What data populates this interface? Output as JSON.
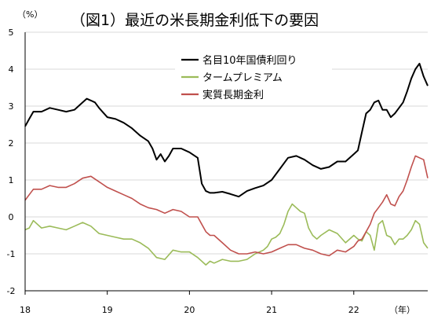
{
  "title": "（図1）最近の米長期金利低下の要因",
  "y_unit": "（%）",
  "x_unit": "（年）",
  "colors": {
    "black": "#000000",
    "green": "#9bbb59",
    "red": "#c0504d"
  },
  "chart_data": {
    "type": "line",
    "title": "（図1）最近の米長期金利低下の要因",
    "ylabel": "（%）",
    "xlabel": "（年）",
    "ylim": [
      -2,
      5
    ],
    "xlim": [
      2018.0,
      2022.9
    ],
    "grid": true,
    "legend_position": "top-center",
    "yticks": [
      "5",
      "4",
      "3",
      "2",
      "1",
      "0",
      "-1",
      "-2"
    ],
    "ytick_values": [
      5,
      4,
      3,
      2,
      1,
      0,
      -1,
      -2
    ],
    "xticks": [
      "18",
      "19",
      "20",
      "21",
      "22"
    ],
    "xtick_values": [
      2018,
      2019,
      2020,
      2021,
      2022
    ],
    "series": [
      {
        "name": "名目10年国債利回り",
        "color": "#000000",
        "x": [
          2018.0,
          2018.05,
          2018.1,
          2018.2,
          2018.3,
          2018.4,
          2018.5,
          2018.6,
          2018.7,
          2018.75,
          2018.8,
          2018.85,
          2018.9,
          2019.0,
          2019.1,
          2019.2,
          2019.3,
          2019.4,
          2019.5,
          2019.55,
          2019.6,
          2019.65,
          2019.7,
          2019.75,
          2019.8,
          2019.9,
          2020.0,
          2020.1,
          2020.15,
          2020.2,
          2020.25,
          2020.3,
          2020.4,
          2020.5,
          2020.6,
          2020.7,
          2020.8,
          2020.9,
          2021.0,
          2021.1,
          2021.2,
          2021.3,
          2021.4,
          2021.5,
          2021.6,
          2021.7,
          2021.8,
          2021.9,
          2022.0,
          2022.05,
          2022.1,
          2022.15,
          2022.2,
          2022.25,
          2022.3,
          2022.35,
          2022.4,
          2022.45,
          2022.5,
          2022.55,
          2022.6,
          2022.65,
          2022.7,
          2022.75,
          2022.8,
          2022.85,
          2022.9
        ],
        "values": [
          2.45,
          2.65,
          2.85,
          2.85,
          2.95,
          2.9,
          2.85,
          2.9,
          3.1,
          3.2,
          3.15,
          3.1,
          2.95,
          2.7,
          2.65,
          2.55,
          2.4,
          2.2,
          2.05,
          1.85,
          1.55,
          1.7,
          1.5,
          1.65,
          1.85,
          1.85,
          1.75,
          1.6,
          0.9,
          0.7,
          0.65,
          0.65,
          0.68,
          0.62,
          0.55,
          0.7,
          0.78,
          0.85,
          1.0,
          1.3,
          1.6,
          1.65,
          1.55,
          1.4,
          1.3,
          1.35,
          1.5,
          1.5,
          1.7,
          1.8,
          2.3,
          2.8,
          2.9,
          3.1,
          3.15,
          2.9,
          2.9,
          2.7,
          2.8,
          2.95,
          3.1,
          3.4,
          3.75,
          4.0,
          4.15,
          3.8,
          3.55
        ]
      },
      {
        "name": "タームプレミアム",
        "color": "#9bbb59",
        "x": [
          2018.0,
          2018.05,
          2018.1,
          2018.2,
          2018.3,
          2018.4,
          2018.5,
          2018.6,
          2018.7,
          2018.8,
          2018.9,
          2019.0,
          2019.1,
          2019.2,
          2019.3,
          2019.4,
          2019.5,
          2019.6,
          2019.7,
          2019.8,
          2019.9,
          2020.0,
          2020.1,
          2020.2,
          2020.25,
          2020.3,
          2020.4,
          2020.5,
          2020.6,
          2020.7,
          2020.8,
          2020.9,
          2020.95,
          2021.0,
          2021.05,
          2021.1,
          2021.15,
          2021.2,
          2021.25,
          2021.3,
          2021.35,
          2021.4,
          2021.45,
          2021.5,
          2021.55,
          2021.6,
          2021.7,
          2021.8,
          2021.9,
          2022.0,
          2022.05,
          2022.1,
          2022.15,
          2022.2,
          2022.25,
          2022.3,
          2022.35,
          2022.4,
          2022.45,
          2022.5,
          2022.55,
          2022.6,
          2022.65,
          2022.7,
          2022.75,
          2022.8,
          2022.85,
          2022.9
        ],
        "values": [
          -0.35,
          -0.3,
          -0.1,
          -0.3,
          -0.25,
          -0.3,
          -0.35,
          -0.25,
          -0.15,
          -0.25,
          -0.45,
          -0.5,
          -0.55,
          -0.6,
          -0.6,
          -0.7,
          -0.85,
          -1.1,
          -1.15,
          -0.9,
          -0.95,
          -0.95,
          -1.1,
          -1.3,
          -1.2,
          -1.25,
          -1.15,
          -1.2,
          -1.2,
          -1.15,
          -1.0,
          -0.9,
          -0.8,
          -0.6,
          -0.55,
          -0.45,
          -0.2,
          0.15,
          0.35,
          0.25,
          0.15,
          0.1,
          -0.3,
          -0.5,
          -0.6,
          -0.5,
          -0.35,
          -0.45,
          -0.7,
          -0.5,
          -0.6,
          -0.65,
          -0.4,
          -0.5,
          -0.9,
          -0.2,
          -0.1,
          -0.5,
          -0.55,
          -0.75,
          -0.6,
          -0.6,
          -0.5,
          -0.35,
          -0.1,
          -0.2,
          -0.7,
          -0.85
        ]
      },
      {
        "name": "実質長期金利",
        "color": "#c0504d",
        "x": [
          2018.0,
          2018.05,
          2018.1,
          2018.2,
          2018.3,
          2018.4,
          2018.5,
          2018.6,
          2018.7,
          2018.8,
          2018.9,
          2019.0,
          2019.1,
          2019.2,
          2019.3,
          2019.4,
          2019.5,
          2019.6,
          2019.7,
          2019.8,
          2019.9,
          2020.0,
          2020.1,
          2020.2,
          2020.25,
          2020.3,
          2020.4,
          2020.5,
          2020.6,
          2020.7,
          2020.8,
          2020.9,
          2021.0,
          2021.1,
          2021.2,
          2021.3,
          2021.4,
          2021.5,
          2021.6,
          2021.7,
          2021.8,
          2021.9,
          2022.0,
          2022.05,
          2022.1,
          2022.15,
          2022.2,
          2022.25,
          2022.3,
          2022.35,
          2022.4,
          2022.45,
          2022.5,
          2022.55,
          2022.6,
          2022.65,
          2022.7,
          2022.75,
          2022.8,
          2022.85,
          2022.9
        ],
        "values": [
          0.45,
          0.6,
          0.75,
          0.75,
          0.85,
          0.8,
          0.8,
          0.9,
          1.05,
          1.1,
          0.95,
          0.8,
          0.7,
          0.6,
          0.5,
          0.35,
          0.25,
          0.2,
          0.1,
          0.2,
          0.15,
          0.0,
          0.0,
          -0.4,
          -0.5,
          -0.5,
          -0.7,
          -0.9,
          -1.0,
          -1.0,
          -0.95,
          -1.0,
          -0.95,
          -0.85,
          -0.75,
          -0.75,
          -0.85,
          -0.9,
          -1.0,
          -1.05,
          -0.9,
          -0.95,
          -0.8,
          -0.65,
          -0.6,
          -0.4,
          -0.2,
          0.1,
          0.25,
          0.4,
          0.6,
          0.35,
          0.3,
          0.55,
          0.7,
          1.0,
          1.35,
          1.65,
          1.6,
          1.55,
          1.05
        ]
      }
    ]
  }
}
